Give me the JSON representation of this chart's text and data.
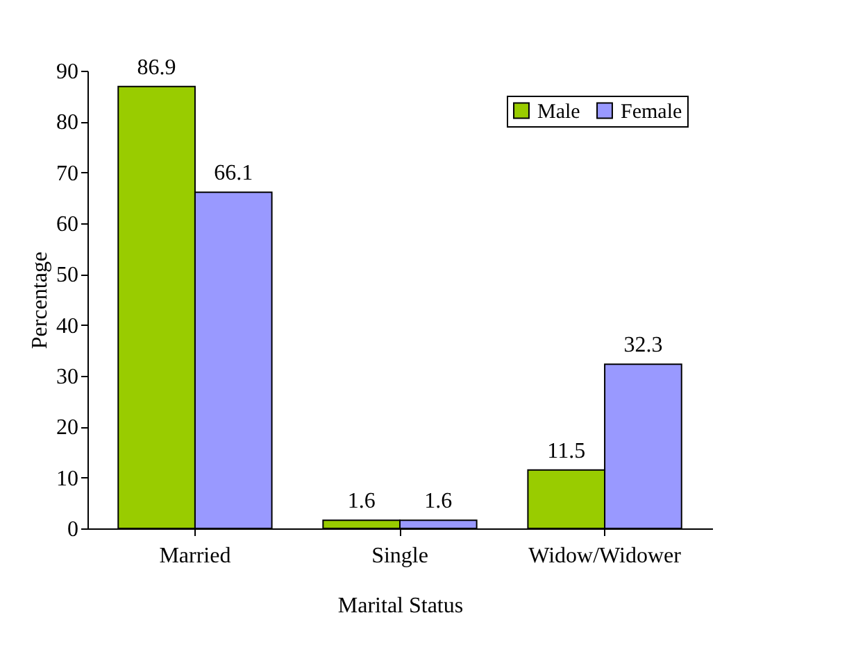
{
  "chart_data": {
    "type": "bar",
    "xlabel": "Marital Status",
    "ylabel": "Percentage",
    "categories": [
      "Married",
      "Single",
      "Widow/Widower"
    ],
    "series": [
      {
        "name": "Male",
        "color": "#99cc00",
        "values": [
          86.9,
          1.6,
          11.5
        ]
      },
      {
        "name": "Female",
        "color": "#9999ff",
        "values": [
          66.1,
          1.6,
          32.3
        ]
      }
    ],
    "ylim": [
      0,
      90
    ],
    "yticks": [
      0,
      10,
      20,
      30,
      40,
      50,
      60,
      70,
      80,
      90
    ],
    "data_labels": true,
    "legend": "top right",
    "grid": false
  }
}
